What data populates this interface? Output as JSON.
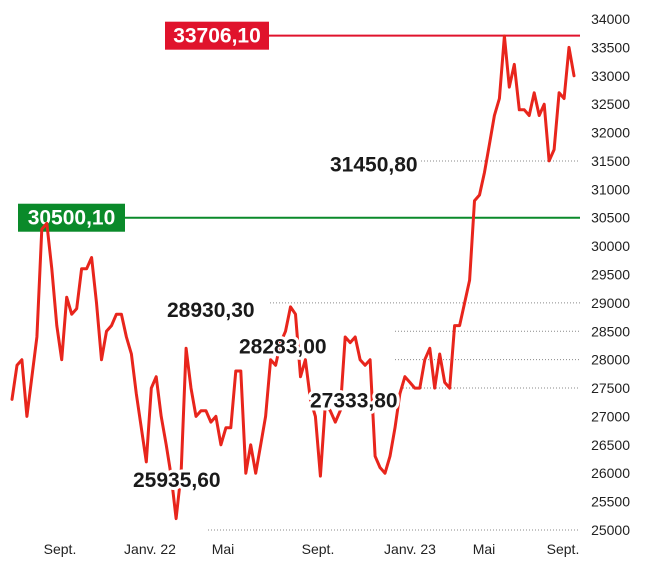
{
  "chart_data": {
    "type": "line",
    "x_labels": [
      "Sept.",
      "Janv. 22",
      "Mai",
      "Sept.",
      "Janv. 23",
      "Mai",
      "Sept."
    ],
    "yticks": [
      25000,
      25500,
      26000,
      26500,
      27000,
      27500,
      28000,
      28500,
      29000,
      29500,
      30000,
      30500,
      31000,
      31500,
      32000,
      32500,
      33000,
      33500,
      34000
    ],
    "ylim": [
      25000,
      34000
    ],
    "grid": "dotted horizontal (partial)",
    "series": [
      {
        "color": "#e8251c",
        "values": [
          27300,
          27900,
          28000,
          27000,
          27700,
          28400,
          30300,
          30400,
          29600,
          28600,
          28000,
          29100,
          28800,
          28900,
          29600,
          29600,
          29800,
          29000,
          28000,
          28500,
          28600,
          28800,
          28800,
          28400,
          28100,
          27400,
          26800,
          26200,
          27500,
          27700,
          27000,
          26500,
          25950,
          25200,
          26000,
          28200,
          27500,
          27000,
          27100,
          27100,
          26900,
          27000,
          26500,
          26800,
          26800,
          27800,
          27800,
          26000,
          26500,
          26000,
          26500,
          27000,
          28000,
          27900,
          28300,
          28500,
          28930,
          28800,
          27700,
          28000,
          27300,
          27000,
          25950,
          27200,
          27100,
          26900,
          27100,
          28400,
          28300,
          28400,
          28000,
          27900,
          28000,
          26300,
          26100,
          26000,
          26300,
          26800,
          27400,
          27700,
          27600,
          27500,
          27500,
          28000,
          28200,
          27500,
          28100,
          27600,
          27500,
          28600,
          28600,
          29000,
          29400,
          30800,
          30900,
          31300,
          31800,
          32300,
          32600,
          33700,
          32800,
          33200,
          32400,
          32400,
          32300,
          32700,
          32300,
          32500,
          31500,
          31700,
          32700,
          32600,
          33500,
          33000
        ]
      }
    ],
    "reference_lines": [
      {
        "value": 33706.1,
        "label": "33706,10",
        "color": "#e0132c"
      },
      {
        "value": 30500.1,
        "label": "30500,10",
        "color": "#0a8a2a"
      }
    ],
    "annotations": [
      {
        "label": "31450,80",
        "value": 31450.8
      },
      {
        "label": "28930,30",
        "value": 28930.3
      },
      {
        "label": "28283,00",
        "value": 28283.0
      },
      {
        "label": "27333,80",
        "value": 27333.8
      },
      {
        "label": "25935,60",
        "value": 25935.6
      }
    ]
  }
}
